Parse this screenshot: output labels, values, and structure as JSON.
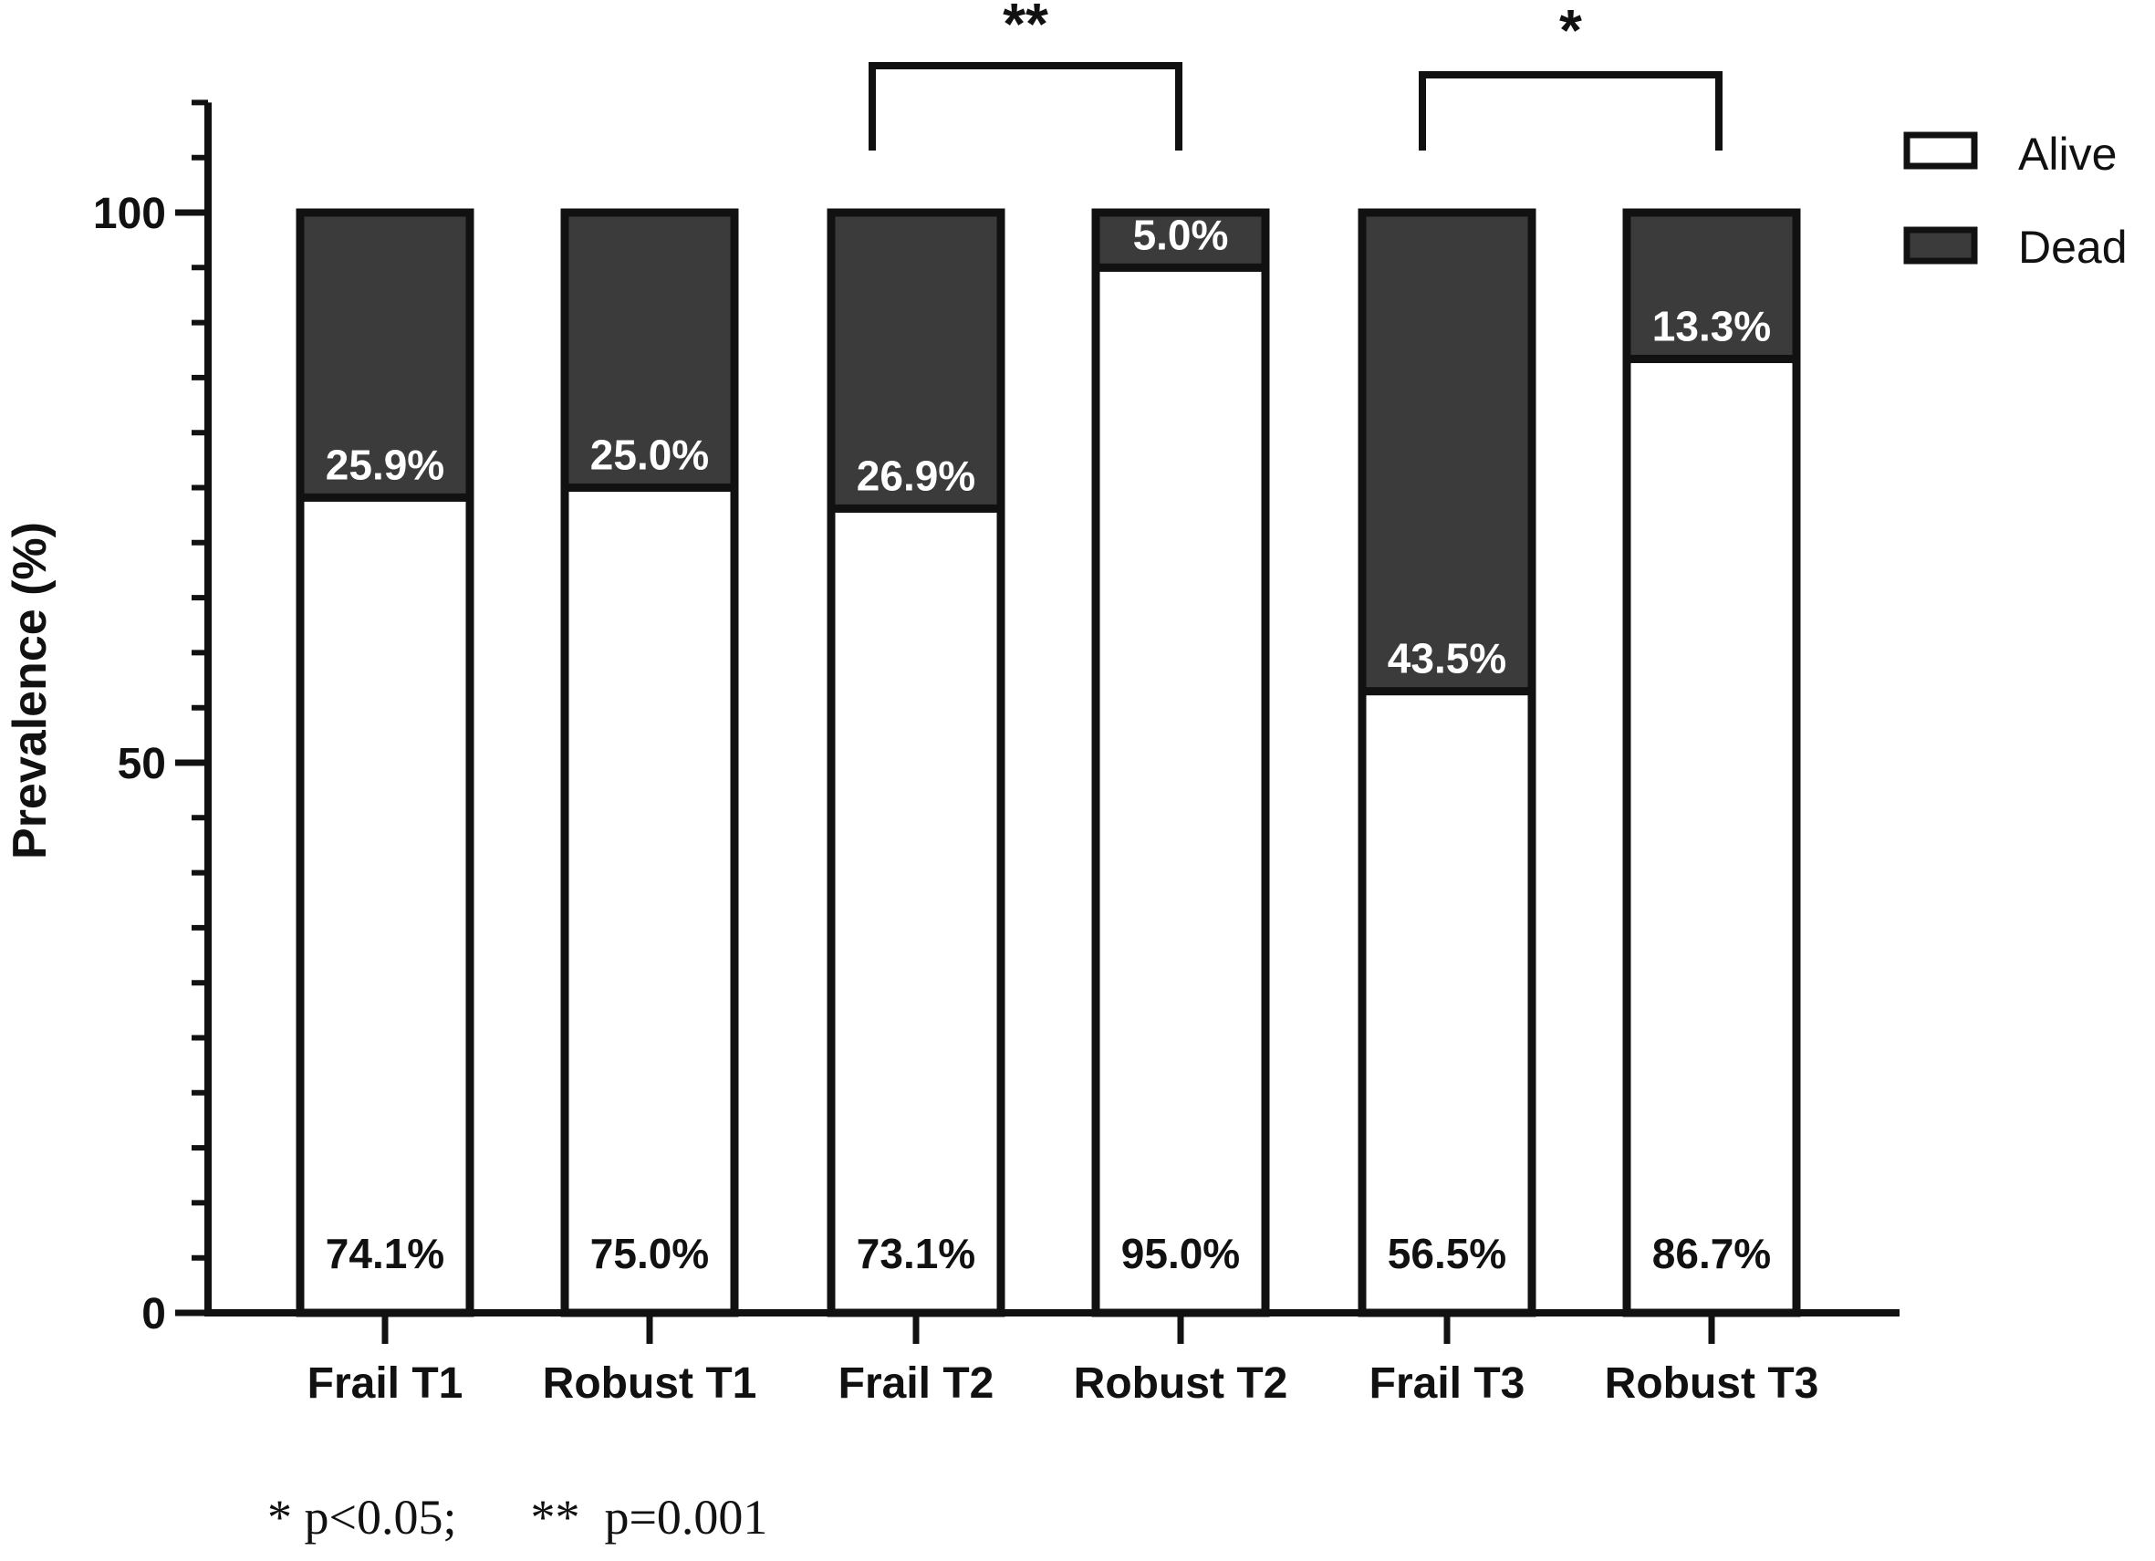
{
  "chart_data": {
    "type": "bar",
    "stacked": true,
    "categories": [
      "Frail T1",
      "Robust T1",
      "Frail T2",
      "Robust T2",
      "Frail T3",
      "Robust T3"
    ],
    "series": [
      {
        "name": "Alive",
        "color": "#ffffff",
        "values": [
          74.1,
          75.0,
          73.1,
          95.0,
          56.5,
          86.7
        ],
        "labels": [
          "74.1%",
          "75.0%",
          "73.1%",
          "95.0%",
          "56.5%",
          "86.7%"
        ]
      },
      {
        "name": "Dead",
        "color": "#3b3b3b",
        "values": [
          25.9,
          25.0,
          26.9,
          5.0,
          43.5,
          13.3
        ],
        "labels": [
          "25.9%",
          "25.0%",
          "26.9%",
          "5.0%",
          "43.5%",
          "13.3%"
        ]
      }
    ],
    "ylabel": "Prevalence (%)",
    "xlabel": "",
    "ylim": [
      0,
      110
    ],
    "yticks": [
      0,
      50,
      100
    ],
    "ytick_labels": [
      "0",
      "50",
      "100"
    ],
    "minor_tick_step": 5,
    "legend_position": "top-right",
    "significance": [
      {
        "from": 2,
        "to": 3,
        "label": "**"
      },
      {
        "from": 4,
        "to": 5,
        "label": "*"
      }
    ],
    "footnote": "* p<0.05;      **  p=0.001"
  }
}
